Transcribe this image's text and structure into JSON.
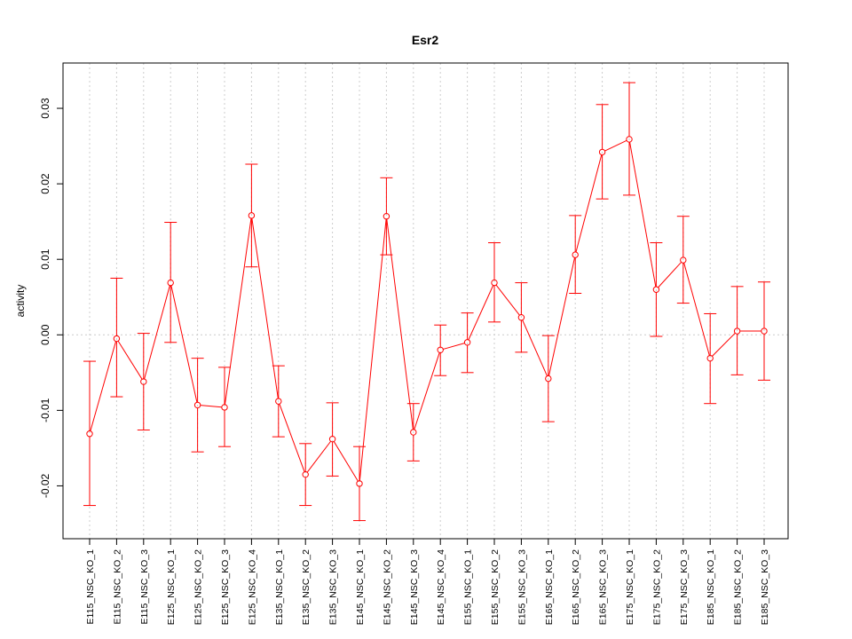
{
  "chart_data": {
    "type": "line",
    "title": "Esr2",
    "xlabel": "",
    "ylabel": "activity",
    "ylim": [
      -0.027,
      0.036
    ],
    "yticks": [
      -0.02,
      -0.01,
      0.0,
      0.01,
      0.02,
      0.03
    ],
    "ytick_labels": [
      "-0.02",
      "-0.01",
      "0.00",
      "0.01",
      "0.02",
      "0.03"
    ],
    "grid": true,
    "reference_line": 0.0,
    "colors": {
      "series": "#ff0000",
      "grid": "#cccccc",
      "axis": "#000000"
    },
    "categories": [
      "E115_NSC_KO_1",
      "E115_NSC_KO_2",
      "E115_NSC_KO_3",
      "E125_NSC_KO_1",
      "E125_NSC_KO_2",
      "E125_NSC_KO_3",
      "E125_NSC_KO_4",
      "E135_NSC_KO_1",
      "E135_NSC_KO_2",
      "E135_NSC_KO_3",
      "E145_NSC_KO_1",
      "E145_NSC_KO_2",
      "E145_NSC_KO_3",
      "E145_NSC_KO_4",
      "E155_NSC_KO_1",
      "E155_NSC_KO_2",
      "E155_NSC_KO_3",
      "E165_NSC_KO_1",
      "E165_NSC_KO_2",
      "E165_NSC_KO_3",
      "E175_NSC_KO_1",
      "E175_NSC_KO_2",
      "E175_NSC_KO_3",
      "E185_NSC_KO_1",
      "E185_NSC_KO_2",
      "E185_NSC_KO_3"
    ],
    "values": [
      -0.0131,
      -0.0005,
      -0.0062,
      0.0069,
      -0.0093,
      -0.0096,
      0.0158,
      -0.0088,
      -0.0185,
      -0.0138,
      -0.0197,
      0.0157,
      -0.0129,
      -0.002,
      -0.001,
      0.0069,
      0.0023,
      -0.0058,
      0.0106,
      0.0242,
      0.0259,
      0.006,
      0.0099,
      -0.0031,
      0.0005,
      0.0005
    ],
    "upper": [
      -0.0035,
      0.0075,
      0.0002,
      0.0149,
      -0.0031,
      -0.0043,
      0.0226,
      -0.0041,
      -0.0144,
      -0.009,
      -0.0148,
      0.0208,
      -0.0091,
      0.0013,
      0.0029,
      0.0122,
      0.0069,
      -0.0001,
      0.0158,
      0.0305,
      0.0334,
      0.0122,
      0.0157,
      0.0028,
      0.0064,
      0.007
    ],
    "lower": [
      -0.0226,
      -0.0082,
      -0.0126,
      -0.001,
      -0.0155,
      -0.0148,
      0.009,
      -0.0135,
      -0.0226,
      -0.0187,
      -0.0246,
      0.0106,
      -0.0167,
      -0.0054,
      -0.005,
      0.0017,
      -0.0023,
      -0.0115,
      0.0055,
      0.018,
      0.0185,
      -0.0002,
      0.0042,
      -0.0091,
      -0.0053,
      -0.006
    ]
  }
}
